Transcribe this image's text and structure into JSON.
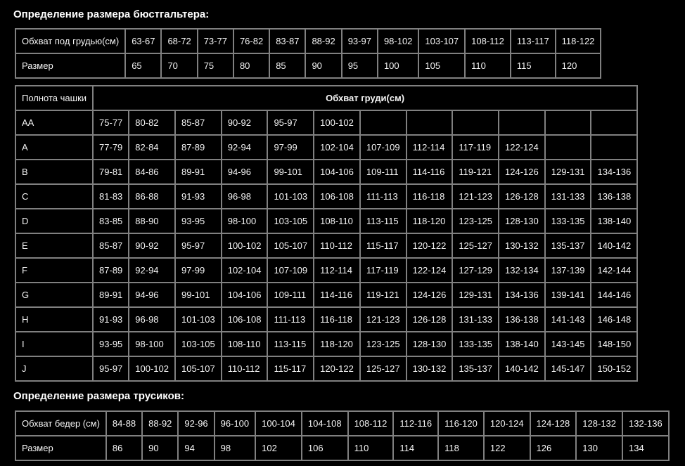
{
  "theme": {
    "background": "#000000",
    "border_color": "#808080",
    "cell_text_color": "#f5f5f5",
    "title_text_color": "#ffffff"
  },
  "bra_section": {
    "title": "Определение размера бюстгальтера:",
    "band_table": {
      "rows": [
        {
          "label": "Обхват под грудью(см)",
          "values": [
            "63-67",
            "68-72",
            "73-77",
            "76-82",
            "83-87",
            "88-92",
            "93-97",
            "98-102",
            "103-107",
            "108-112",
            "113-117",
            "118-122"
          ]
        },
        {
          "label": "Размер",
          "values": [
            "65",
            "70",
            "75",
            "80",
            "85",
            "90",
            "95",
            "100",
            "105",
            "110",
            "115",
            "120"
          ]
        }
      ]
    },
    "cup_table": {
      "corner_label": "Полнота чашки",
      "span_header": "Обхват груди(см)",
      "rows": [
        {
          "label": "AA",
          "values": [
            "75-77",
            "80-82",
            "85-87",
            "90-92",
            "95-97",
            "100-102",
            "",
            "",
            "",
            "",
            "",
            ""
          ]
        },
        {
          "label": "A",
          "values": [
            "77-79",
            "82-84",
            "87-89",
            "92-94",
            "97-99",
            "102-104",
            "107-109",
            "112-114",
            "117-119",
            "122-124",
            "",
            ""
          ]
        },
        {
          "label": "B",
          "values": [
            "79-81",
            "84-86",
            "89-91",
            "94-96",
            "99-101",
            "104-106",
            "109-111",
            "114-116",
            "119-121",
            "124-126",
            "129-131",
            "134-136"
          ]
        },
        {
          "label": "C",
          "values": [
            "81-83",
            "86-88",
            "91-93",
            "96-98",
            "101-103",
            "106-108",
            "111-113",
            "116-118",
            "121-123",
            "126-128",
            "131-133",
            "136-138"
          ]
        },
        {
          "label": "D",
          "values": [
            "83-85",
            "88-90",
            "93-95",
            "98-100",
            "103-105",
            "108-110",
            "113-115",
            "118-120",
            "123-125",
            "128-130",
            "133-135",
            "138-140"
          ]
        },
        {
          "label": "E",
          "values": [
            "85-87",
            "90-92",
            "95-97",
            "100-102",
            "105-107",
            "110-112",
            "115-117",
            "120-122",
            "125-127",
            "130-132",
            "135-137",
            "140-142"
          ]
        },
        {
          "label": "F",
          "values": [
            "87-89",
            "92-94",
            "97-99",
            "102-104",
            "107-109",
            "112-114",
            "117-119",
            "122-124",
            "127-129",
            "132-134",
            "137-139",
            "142-144"
          ]
        },
        {
          "label": "G",
          "values": [
            "89-91",
            "94-96",
            "99-101",
            "104-106",
            "109-111",
            "114-116",
            "119-121",
            "124-126",
            "129-131",
            "134-136",
            "139-141",
            "144-146"
          ]
        },
        {
          "label": "H",
          "values": [
            "91-93",
            "96-98",
            "101-103",
            "106-108",
            "111-113",
            "116-118",
            "121-123",
            "126-128",
            "131-133",
            "136-138",
            "141-143",
            "146-148"
          ]
        },
        {
          "label": "I",
          "values": [
            "93-95",
            "98-100",
            "103-105",
            "108-110",
            "113-115",
            "118-120",
            "123-125",
            "128-130",
            "133-135",
            "138-140",
            "143-145",
            "148-150"
          ]
        },
        {
          "label": "J",
          "values": [
            "95-97",
            "100-102",
            "105-107",
            "110-112",
            "115-117",
            "120-122",
            "125-127",
            "130-132",
            "135-137",
            "140-142",
            "145-147",
            "150-152"
          ]
        }
      ]
    }
  },
  "panty_section": {
    "title": "Определение размера трусиков:",
    "table": {
      "rows": [
        {
          "label": "Обхват бедер (см)",
          "values": [
            "84-88",
            "88-92",
            "92-96",
            "96-100",
            "100-104",
            "104-108",
            "108-112",
            "112-116",
            "116-120",
            "120-124",
            "124-128",
            "128-132",
            "132-136"
          ]
        },
        {
          "label": "Размер",
          "values": [
            "86",
            "90",
            "94",
            "98",
            "102",
            "106",
            "110",
            "114",
            "118",
            "122",
            "126",
            "130",
            "134"
          ]
        }
      ]
    }
  }
}
